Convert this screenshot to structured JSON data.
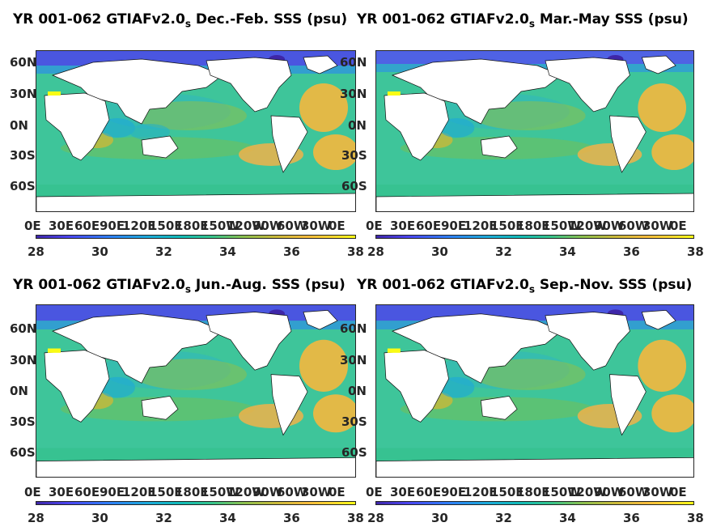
{
  "panels": [
    {
      "title_prefix": "YR 001-062 GTIAFv2.0",
      "title_sub": "s",
      "title_suffix": " Dec.-Feb. SSS (psu)"
    },
    {
      "title_prefix": "YR 001-062 GTIAFv2.0",
      "title_sub": "s",
      "title_suffix": " Mar.-May SSS (psu)"
    },
    {
      "title_prefix": "YR 001-062 GTIAFv2.0",
      "title_sub": "s",
      "title_suffix": " Jun.-Aug. SSS (psu)"
    },
    {
      "title_prefix": "YR 001-062 GTIAFv2.0",
      "title_sub": "s",
      "title_suffix": " Sep.-Nov. SSS (psu)"
    }
  ],
  "lat_ticks": [
    "60N",
    "30N",
    "0N",
    "30S",
    "60S"
  ],
  "lon_ticks": [
    "0E",
    "30E",
    "60E",
    "90E",
    "120E",
    "150E",
    "180E",
    "150W",
    "120W",
    "90W",
    "60W",
    "30W",
    "0E"
  ],
  "colorbar_ticks": [
    "28",
    "30",
    "32",
    "34",
    "36",
    "38"
  ],
  "colors": {
    "land": "#ffffff",
    "fresh": "#3e26a8",
    "base_ocean": "#3ec59a",
    "salty": "#f4b73e",
    "max": "#f9fb15"
  }
}
